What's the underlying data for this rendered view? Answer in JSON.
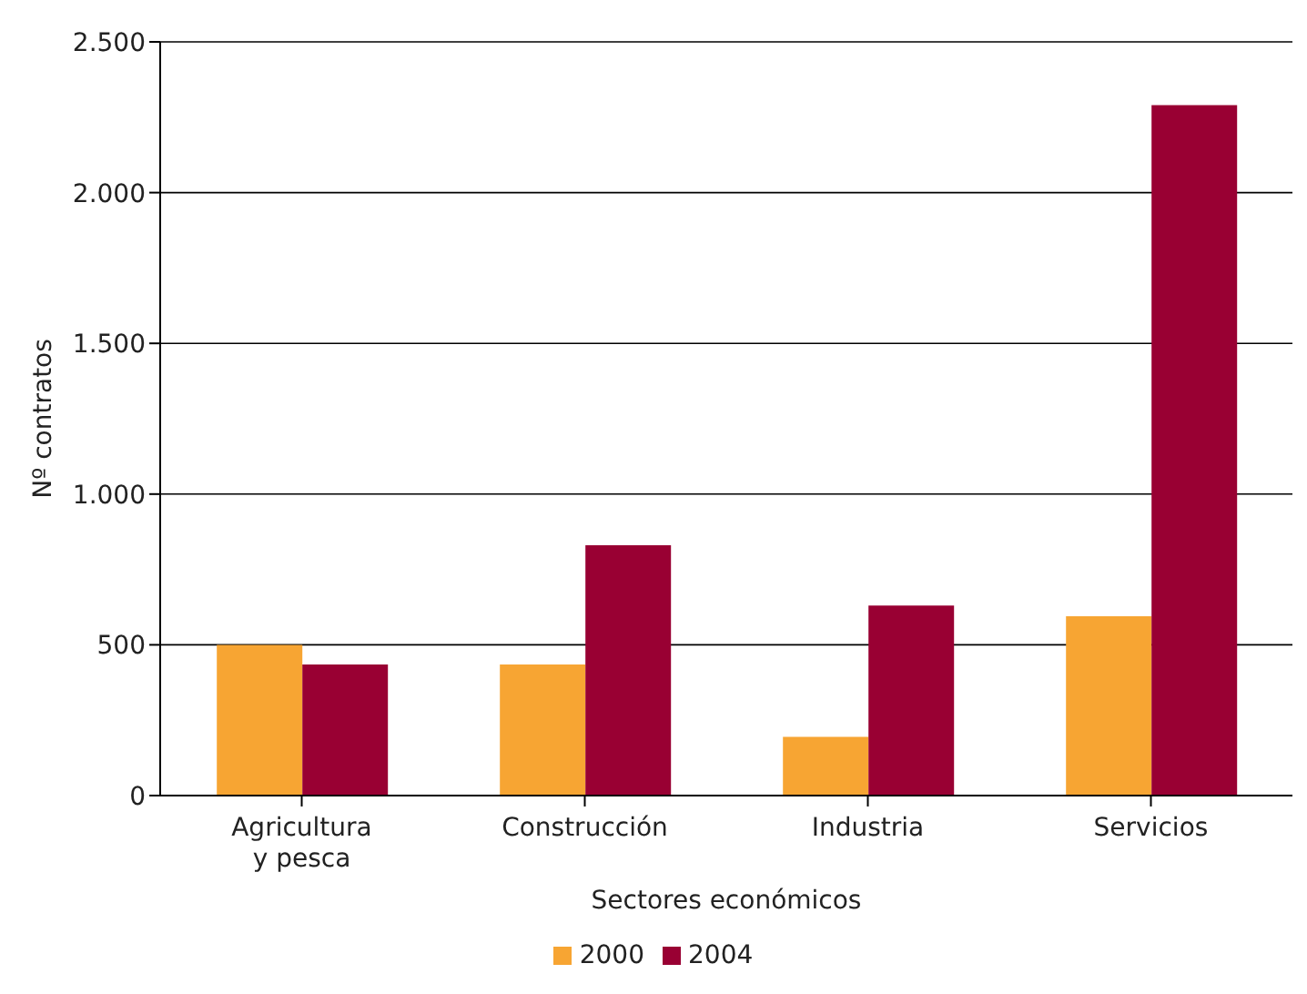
{
  "chart_data": {
    "type": "bar",
    "xlabel": "Sectores económicos",
    "ylabel": "Nº contratos",
    "categories": [
      "Agricultura\ny pesca",
      "Construcción",
      "Industria",
      "Servicios"
    ],
    "series": [
      {
        "name": "2000",
        "color": "#f7a533",
        "values": [
          500,
          435,
          195,
          595
        ]
      },
      {
        "name": "2004",
        "color": "#990033",
        "values": [
          435,
          830,
          630,
          2290
        ]
      }
    ],
    "ylim": [
      0,
      2500
    ],
    "yticks": [
      0,
      500,
      {
        "value": 1000,
        "label": "1.000"
      },
      {
        "value": 1500,
        "label": "1.500"
      },
      {
        "value": 2000,
        "label": "2.000"
      },
      {
        "value": 2500,
        "label": "2.500"
      }
    ],
    "grid": "y",
    "legend": "bottom"
  }
}
